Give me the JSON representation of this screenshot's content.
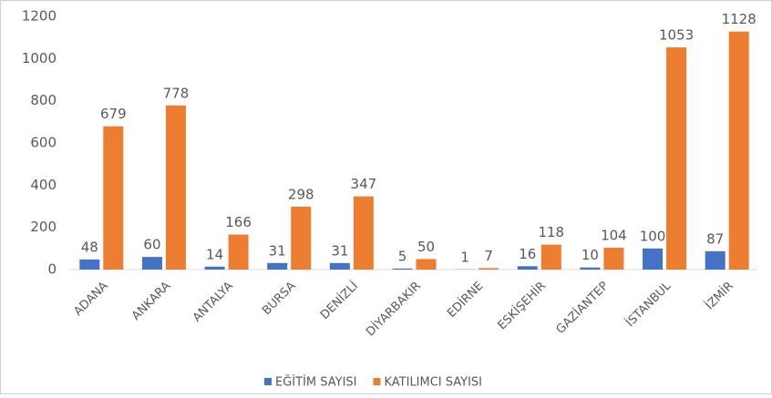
{
  "chart_data": {
    "type": "bar",
    "categories": [
      "ADANA",
      "ANKARA",
      "ANTALYA",
      "BURSA",
      "DENİZLİ",
      "DİYARBAKIR",
      "EDİRNE",
      "ESKİŞEHİR",
      "GAZİANTEP",
      "İSTANBUL",
      "İZMİR"
    ],
    "series": [
      {
        "name": "EĞİTİM SAYISI",
        "color": "#4472c4",
        "values": [
          48,
          60,
          14,
          31,
          31,
          5,
          1,
          16,
          10,
          100,
          87
        ]
      },
      {
        "name": "KATILIMCI SAYISI",
        "color": "#ed7d31",
        "values": [
          679,
          778,
          166,
          298,
          347,
          50,
          7,
          118,
          104,
          1053,
          1128
        ]
      }
    ],
    "ylim": [
      0,
      1200
    ],
    "yticks": [
      0,
      200,
      400,
      600,
      800,
      1000,
      1200
    ],
    "grid": false,
    "legend": "bottom"
  }
}
